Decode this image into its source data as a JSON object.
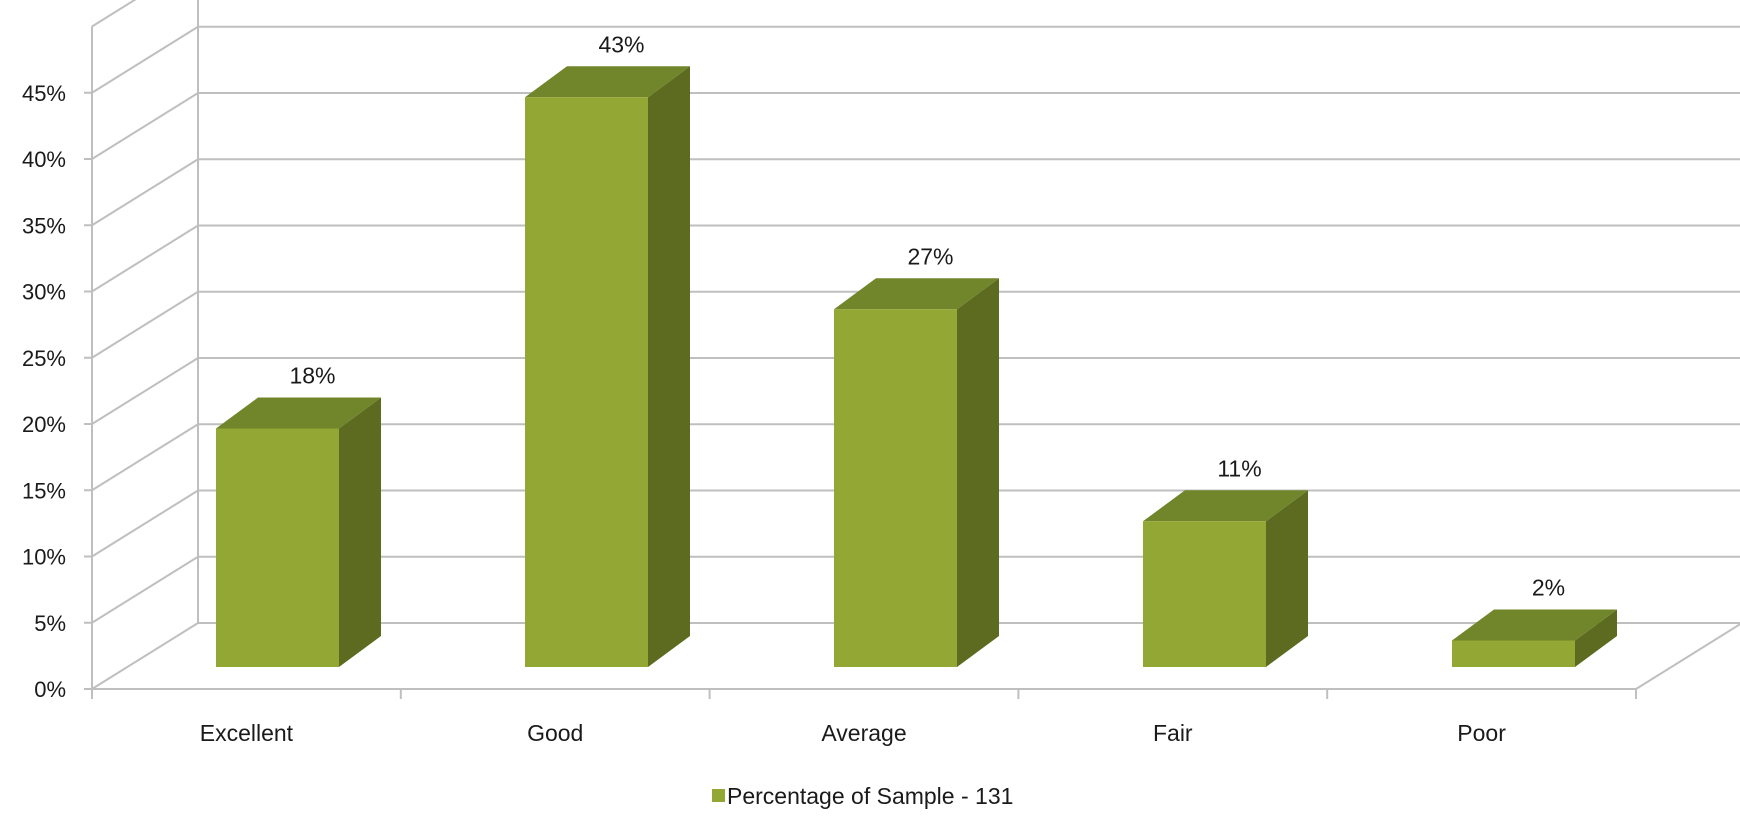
{
  "chart_data": {
    "type": "bar",
    "style": "3d-column",
    "categories": [
      "Excellent",
      "Good",
      "Average",
      "Fair",
      "Poor"
    ],
    "series": [
      {
        "name": "Percentage of Sample - 131",
        "values": [
          18,
          43,
          27,
          11,
          2
        ],
        "data_labels": [
          "18%",
          "43%",
          "27%",
          "11%",
          "2%"
        ]
      }
    ],
    "ylim": [
      0,
      45
    ],
    "yticks": [
      0,
      5,
      10,
      15,
      20,
      25,
      30,
      35,
      40,
      45
    ],
    "ytick_labels": [
      "0%",
      "5%",
      "10%",
      "15%",
      "20%",
      "25%",
      "30%",
      "35%",
      "40%",
      "45%"
    ],
    "title": "",
    "xlabel": "",
    "ylabel": "",
    "grid": true,
    "legend_position": "bottom",
    "colors": {
      "bar_front": "#93a734",
      "bar_top": "#71852a",
      "bar_side": "#5c6b20",
      "grid": "#bfbfbf",
      "text": "#1a1a1a"
    }
  }
}
